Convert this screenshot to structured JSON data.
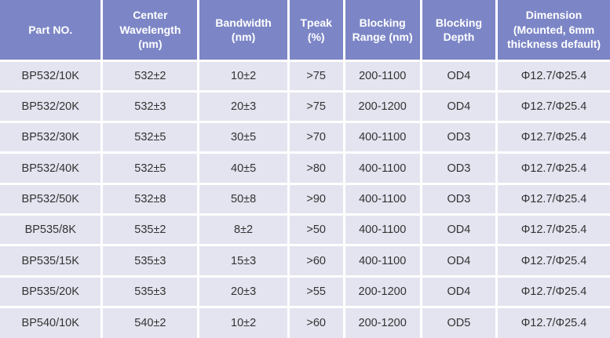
{
  "table": {
    "columns": [
      {
        "label": "Part NO."
      },
      {
        "label": "Center Wavelength (nm)"
      },
      {
        "label": "Bandwidth (nm)"
      },
      {
        "label": "Tpeak (%)"
      },
      {
        "label": "Blocking Range (nm)"
      },
      {
        "label": "Blocking Depth"
      },
      {
        "label": "Dimension (Mounted, 6mm thickness default)"
      }
    ],
    "rows": [
      [
        "BP532/10K",
        "532±2",
        "10±2",
        ">75",
        "200-1100",
        "OD4",
        "Φ12.7/Φ25.4"
      ],
      [
        "BP532/20K",
        "532±3",
        "20±3",
        ">75",
        "200-1200",
        "OD4",
        "Φ12.7/Φ25.4"
      ],
      [
        "BP532/30K",
        "532±5",
        "30±5",
        ">70",
        "400-1100",
        "OD3",
        "Φ12.7/Φ25.4"
      ],
      [
        "BP532/40K",
        "532±5",
        "40±5",
        ">80",
        "400-1100",
        "OD3",
        "Φ12.7/Φ25.4"
      ],
      [
        "BP532/50K",
        "532±8",
        "50±8",
        ">90",
        "400-1100",
        "OD3",
        "Φ12.7/Φ25.4"
      ],
      [
        "BP535/8K",
        "535±2",
        "8±2",
        ">50",
        "400-1100",
        "OD4",
        "Φ12.7/Φ25.4"
      ],
      [
        "BP535/15K",
        "535±3",
        "15±3",
        ">60",
        "400-1100",
        "OD4",
        "Φ12.7/Φ25.4"
      ],
      [
        "BP535/20K",
        "535±3",
        "20±3",
        ">55",
        "200-1200",
        "OD4",
        "Φ12.7/Φ25.4"
      ],
      [
        "BP540/10K",
        "540±2",
        "10±2",
        ">60",
        "200-1200",
        "OD5",
        "Φ12.7/Φ25.4"
      ]
    ]
  },
  "colors": {
    "header_bg": "#7c86c6",
    "header_text": "#ffffff",
    "cell_bg": "#e4e4f0",
    "gridline": "#ffffff",
    "cell_text": "#333333"
  }
}
